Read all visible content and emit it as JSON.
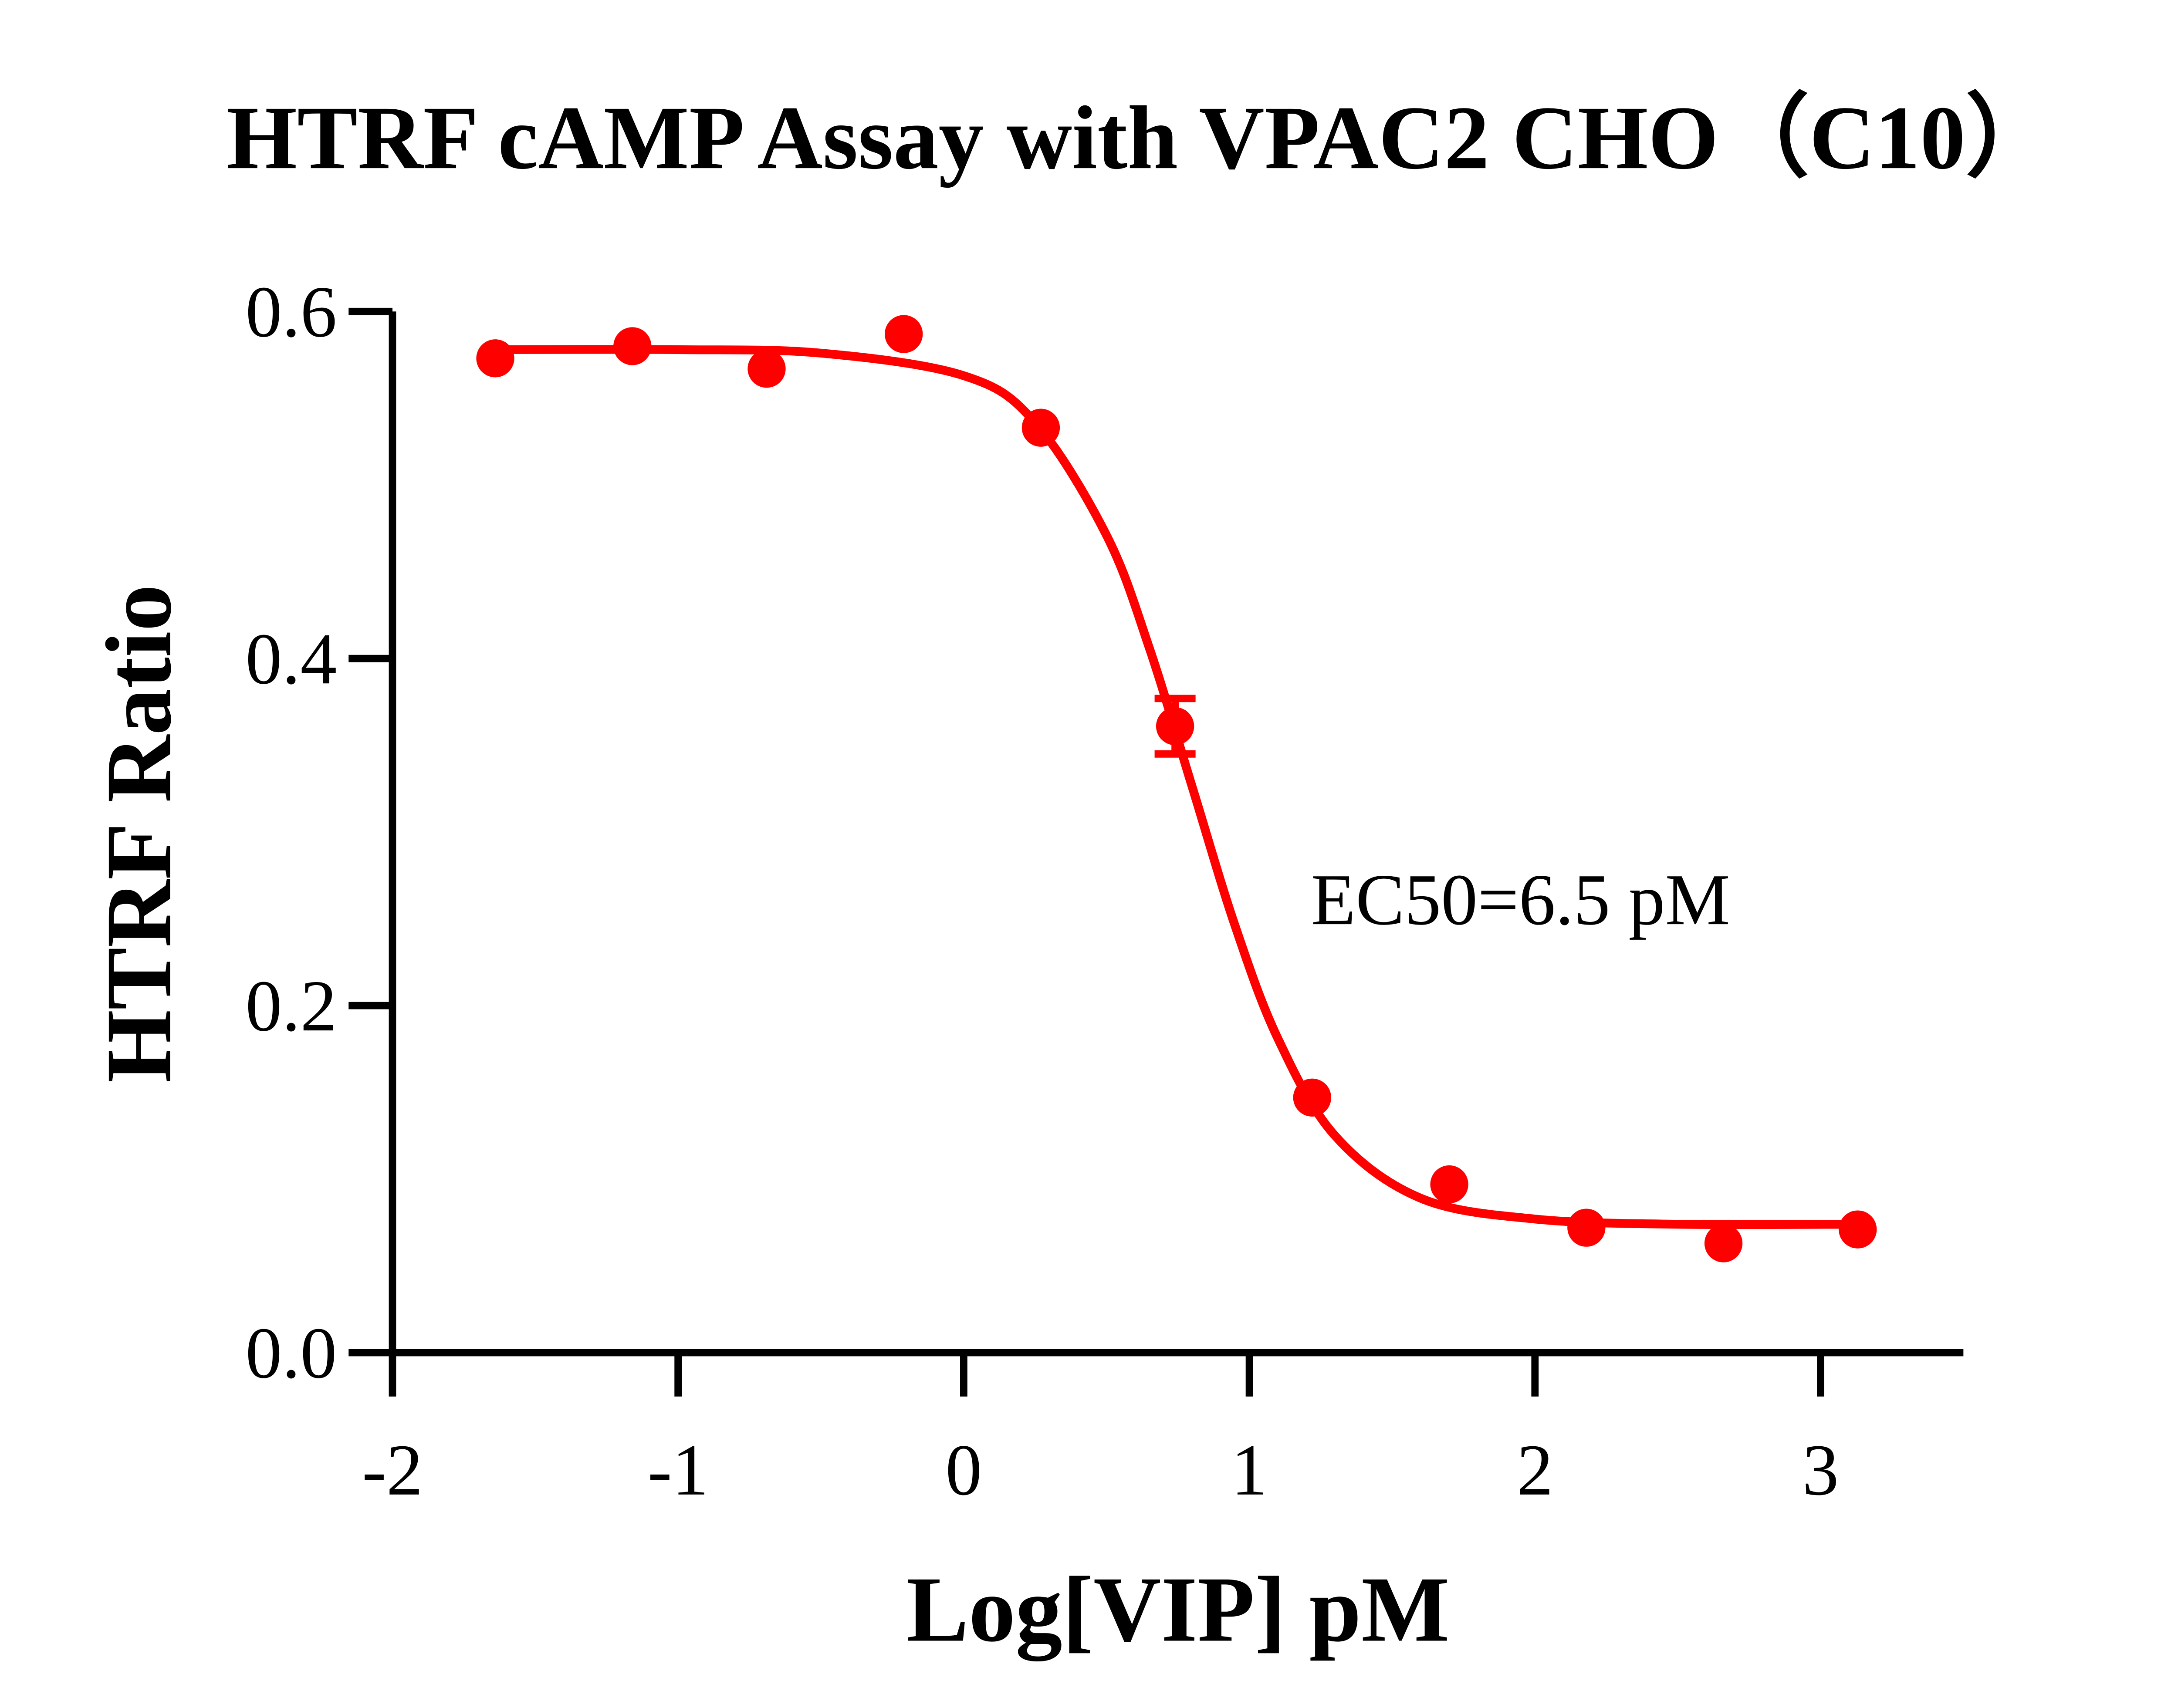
{
  "chart_data": {
    "type": "scatter",
    "title": "HTRF cAMP Assay with VPAC2 CHO（C10）",
    "x_label": "Log[VIP] pM",
    "y_label": "HTRF Ratio",
    "annotation": "EC50=6.5 pM",
    "color": "#ff0000",
    "x": [
      -1.64,
      -1.16,
      -0.69,
      -0.21,
      0.27,
      0.74,
      1.22,
      1.7,
      2.18,
      2.66,
      3.13
    ],
    "values": [
      0.573,
      0.58,
      0.567,
      0.587,
      0.533,
      0.361,
      0.147,
      0.097,
      0.072,
      0.063,
      0.071
    ],
    "errors": [
      null,
      null,
      null,
      null,
      null,
      0.016,
      null,
      null,
      null,
      null,
      null
    ],
    "fit": {
      "x": [
        -1.64,
        -1.0,
        -0.5,
        0,
        0.25,
        0.5,
        0.65,
        0.8,
        0.95,
        1.1,
        1.3,
        1.6,
        2.0,
        2.5,
        3.13
      ],
      "values": [
        0.578,
        0.578,
        0.576,
        0.563,
        0.536,
        0.471,
        0.406,
        0.326,
        0.246,
        0.181,
        0.125,
        0.089,
        0.077,
        0.074,
        0.074
      ]
    },
    "xlim": [
      -2,
      3.5
    ],
    "ylim": [
      0,
      0.6
    ],
    "xticks": [
      -2,
      -1,
      0,
      1,
      2,
      3
    ],
    "yticks": [
      {
        "value": 0,
        "label": "0.0"
      },
      0.2,
      0.4,
      0.6
    ]
  }
}
